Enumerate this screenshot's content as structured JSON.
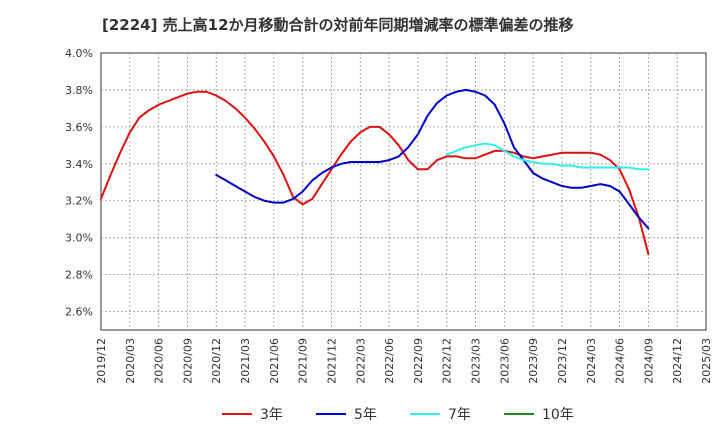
{
  "chart_data": {
    "type": "line",
    "title": "[2224]  売上高12か月移動合計の対前年同期増減率の標準偏差の推移",
    "xlabel": "",
    "ylabel": "",
    "ylim": [
      0.025,
      0.04
    ],
    "grid": true,
    "legend_position": "bottom",
    "yticks": [
      {
        "value": 0.026,
        "label": "2.6%"
      },
      {
        "value": 0.028,
        "label": "2.8%"
      },
      {
        "value": 0.03,
        "label": "3.0%"
      },
      {
        "value": 0.032,
        "label": "3.2%"
      },
      {
        "value": 0.034,
        "label": "3.4%"
      },
      {
        "value": 0.036,
        "label": "3.6%"
      },
      {
        "value": 0.038,
        "label": "3.8%"
      },
      {
        "value": 0.04,
        "label": "4.0%"
      }
    ],
    "xticks": [
      "2019/12",
      "2020/03",
      "2020/06",
      "2020/09",
      "2020/12",
      "2021/03",
      "2021/06",
      "2021/09",
      "2021/12",
      "2022/03",
      "2022/06",
      "2022/09",
      "2022/12",
      "2023/03",
      "2023/06",
      "2023/09",
      "2023/12",
      "2024/03",
      "2024/06",
      "2024/09",
      "2024/12",
      "2025/03"
    ],
    "series": [
      {
        "name": "3年",
        "color": "#dd1111",
        "points": [
          [
            "2019/12",
            0.0321
          ],
          [
            "2020/01",
            0.0334
          ],
          [
            "2020/02",
            0.0346
          ],
          [
            "2020/03",
            0.0357
          ],
          [
            "2020/04",
            0.0365
          ],
          [
            "2020/05",
            0.0369
          ],
          [
            "2020/06",
            0.0372
          ],
          [
            "2020/07",
            0.0374
          ],
          [
            "2020/08",
            0.0376
          ],
          [
            "2020/09",
            0.0378
          ],
          [
            "2020/10",
            0.0379
          ],
          [
            "2020/11",
            0.0379
          ],
          [
            "2020/12",
            0.0377
          ],
          [
            "2021/01",
            0.0374
          ],
          [
            "2021/02",
            0.037
          ],
          [
            "2021/03",
            0.0365
          ],
          [
            "2021/04",
            0.0359
          ],
          [
            "2021/05",
            0.0352
          ],
          [
            "2021/06",
            0.0344
          ],
          [
            "2021/07",
            0.0334
          ],
          [
            "2021/08",
            0.0322
          ],
          [
            "2021/09",
            0.0318
          ],
          [
            "2021/10",
            0.0321
          ],
          [
            "2021/11",
            0.0329
          ],
          [
            "2021/12",
            0.0337
          ],
          [
            "2022/01",
            0.0345
          ],
          [
            "2022/02",
            0.0352
          ],
          [
            "2022/03",
            0.0357
          ],
          [
            "2022/04",
            0.036
          ],
          [
            "2022/05",
            0.036
          ],
          [
            "2022/06",
            0.0356
          ],
          [
            "2022/07",
            0.035
          ],
          [
            "2022/08",
            0.0342
          ],
          [
            "2022/09",
            0.0337
          ],
          [
            "2022/10",
            0.0337
          ],
          [
            "2022/11",
            0.0342
          ],
          [
            "2022/12",
            0.0344
          ],
          [
            "2023/01",
            0.0344
          ],
          [
            "2023/02",
            0.0343
          ],
          [
            "2023/03",
            0.0343
          ],
          [
            "2023/04",
            0.0345
          ],
          [
            "2023/05",
            0.0347
          ],
          [
            "2023/06",
            0.0347
          ],
          [
            "2023/07",
            0.0346
          ],
          [
            "2023/08",
            0.0344
          ],
          [
            "2023/09",
            0.0343
          ],
          [
            "2023/10",
            0.0344
          ],
          [
            "2023/11",
            0.0345
          ],
          [
            "2023/12",
            0.0346
          ],
          [
            "2024/01",
            0.0346
          ],
          [
            "2024/02",
            0.0346
          ],
          [
            "2024/03",
            0.0346
          ],
          [
            "2024/04",
            0.0345
          ],
          [
            "2024/05",
            0.0342
          ],
          [
            "2024/06",
            0.0337
          ],
          [
            "2024/07",
            0.0326
          ],
          [
            "2024/08",
            0.0311
          ],
          [
            "2024/09",
            0.0291
          ]
        ]
      },
      {
        "name": "5年",
        "color": "#0000cc",
        "points": [
          [
            "2020/12",
            0.0334
          ],
          [
            "2021/01",
            0.0331
          ],
          [
            "2021/02",
            0.0328
          ],
          [
            "2021/03",
            0.0325
          ],
          [
            "2021/04",
            0.0322
          ],
          [
            "2021/05",
            0.032
          ],
          [
            "2021/06",
            0.0319
          ],
          [
            "2021/07",
            0.0319
          ],
          [
            "2021/08",
            0.0321
          ],
          [
            "2021/09",
            0.0325
          ],
          [
            "2021/10",
            0.0331
          ],
          [
            "2021/11",
            0.0335
          ],
          [
            "2021/12",
            0.0338
          ],
          [
            "2022/01",
            0.034
          ],
          [
            "2022/02",
            0.0341
          ],
          [
            "2022/03",
            0.0341
          ],
          [
            "2022/04",
            0.0341
          ],
          [
            "2022/05",
            0.0341
          ],
          [
            "2022/06",
            0.0342
          ],
          [
            "2022/07",
            0.0344
          ],
          [
            "2022/08",
            0.0349
          ],
          [
            "2022/09",
            0.0356
          ],
          [
            "2022/10",
            0.0366
          ],
          [
            "2022/11",
            0.0373
          ],
          [
            "2022/12",
            0.0377
          ],
          [
            "2023/01",
            0.0379
          ],
          [
            "2023/02",
            0.038
          ],
          [
            "2023/03",
            0.0379
          ],
          [
            "2023/04",
            0.0377
          ],
          [
            "2023/05",
            0.0372
          ],
          [
            "2023/06",
            0.0362
          ],
          [
            "2023/07",
            0.0349
          ],
          [
            "2023/08",
            0.0342
          ],
          [
            "2023/09",
            0.0335
          ],
          [
            "2023/10",
            0.0332
          ],
          [
            "2023/11",
            0.033
          ],
          [
            "2023/12",
            0.0328
          ],
          [
            "2024/01",
            0.0327
          ],
          [
            "2024/02",
            0.0327
          ],
          [
            "2024/03",
            0.0328
          ],
          [
            "2024/04",
            0.0329
          ],
          [
            "2024/05",
            0.0328
          ],
          [
            "2024/06",
            0.0325
          ],
          [
            "2024/07",
            0.0318
          ],
          [
            "2024/08",
            0.0311
          ],
          [
            "2024/09",
            0.0305
          ]
        ]
      },
      {
        "name": "7年",
        "color": "#33eeee",
        "points": [
          [
            "2022/12",
            0.0345
          ],
          [
            "2023/01",
            0.0347
          ],
          [
            "2023/02",
            0.0349
          ],
          [
            "2023/03",
            0.035
          ],
          [
            "2023/04",
            0.0351
          ],
          [
            "2023/05",
            0.035
          ],
          [
            "2023/06",
            0.0347
          ],
          [
            "2023/07",
            0.0344
          ],
          [
            "2023/08",
            0.0342
          ],
          [
            "2023/09",
            0.0341
          ],
          [
            "2023/10",
            0.034
          ],
          [
            "2023/11",
            0.034
          ],
          [
            "2023/12",
            0.0339
          ],
          [
            "2024/01",
            0.0339
          ],
          [
            "2024/02",
            0.0338
          ],
          [
            "2024/03",
            0.0338
          ],
          [
            "2024/04",
            0.0338
          ],
          [
            "2024/05",
            0.0338
          ],
          [
            "2024/06",
            0.0338
          ],
          [
            "2024/07",
            0.0338
          ],
          [
            "2024/08",
            0.0337
          ],
          [
            "2024/09",
            0.0337
          ]
        ]
      },
      {
        "name": "10年",
        "color": "#228822",
        "points": []
      }
    ]
  }
}
